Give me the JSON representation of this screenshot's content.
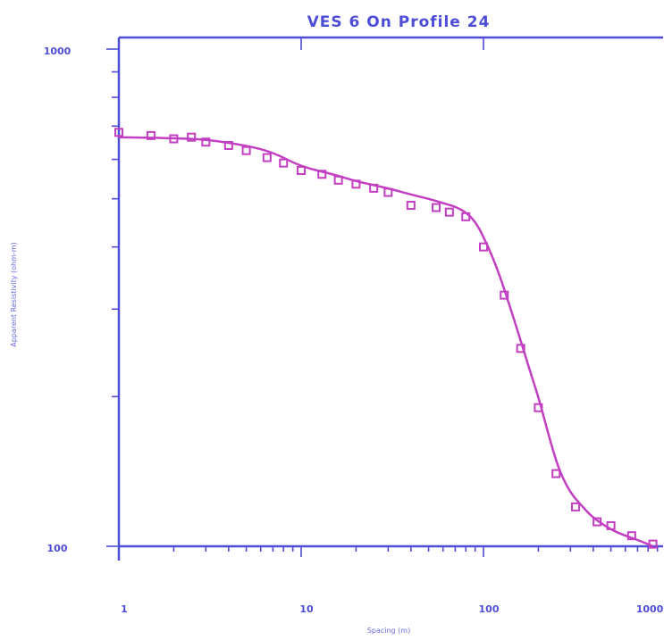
{
  "chart_data": {
    "type": "scatter",
    "title": "VES 6 On Profile 24",
    "xlabel": "Spacing (m)",
    "ylabel": "Apparent Resistivity (ohm-m)",
    "x_scale": "log",
    "y_scale": "log",
    "xlim": [
      1,
      1000
    ],
    "ylim": [
      100,
      1000
    ],
    "x_tick_labels": [
      "1",
      "10",
      "100",
      "1000"
    ],
    "y_tick_labels": [
      "100",
      "1000"
    ],
    "grid": false,
    "colors": {
      "axis": "#4d4dd6",
      "series": "#c23fc2"
    },
    "series": [
      {
        "kind": "observed",
        "x": [
          1,
          1.5,
          2,
          2.5,
          3,
          4,
          5,
          6.5,
          8,
          10,
          13,
          16,
          20,
          25,
          30,
          40,
          55,
          65,
          80,
          100,
          130,
          160,
          200,
          250,
          320,
          420,
          500,
          650,
          850
        ],
        "y": [
          680,
          670,
          660,
          665,
          650,
          640,
          625,
          605,
          590,
          570,
          560,
          545,
          535,
          525,
          515,
          485,
          480,
          470,
          460,
          400,
          320,
          250,
          190,
          140,
          120,
          112,
          110,
          105,
          101
        ]
      },
      {
        "kind": "model",
        "x": [
          1,
          2,
          3,
          5,
          7,
          10,
          15,
          20,
          30,
          40,
          50,
          60,
          70,
          80,
          90,
          100,
          120,
          150,
          180,
          200,
          230,
          260,
          300,
          350,
          400,
          500,
          600,
          700,
          850
        ],
        "y": [
          665,
          662,
          658,
          640,
          620,
          580,
          560,
          542,
          525,
          510,
          500,
          490,
          482,
          470,
          450,
          420,
          360,
          280,
          225,
          200,
          165,
          142,
          128,
          120,
          114,
          108,
          105,
          103,
          100
        ]
      }
    ]
  }
}
